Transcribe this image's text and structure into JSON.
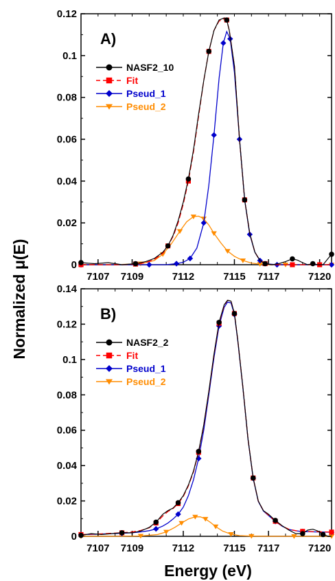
{
  "figure": {
    "ylabel": "Normalized μ(E)",
    "xlabel": "Energy (eV)"
  },
  "colors": {
    "data": "#000000",
    "fit": "#ff0000",
    "pseud_1": "#0000cc",
    "pseud_2": "#ff8c00"
  },
  "chart_data": [
    {
      "type": "line",
      "panel_label": "A)",
      "xlim": [
        7106,
        7120.7
      ],
      "ylim": [
        0,
        0.12
      ],
      "x_ticks": [
        7107,
        7109,
        7112,
        7115,
        7117,
        7120
      ],
      "y_ticks": [
        0,
        0.02,
        0.04,
        0.06,
        0.08,
        0.1,
        0.12
      ],
      "y_tick_labels": [
        "0",
        "0.02",
        "0.04",
        "0.06",
        "0.08",
        "0.1",
        "0.12"
      ],
      "legend": [
        "NASF2_10",
        "Fit",
        "Pseud_1",
        "Pseud_2"
      ],
      "series": [
        {
          "name": "NASF2_10",
          "marker": "circle",
          "x": [
            7106.0,
            7106.8,
            7107.6,
            7108.4,
            7109.2,
            7109.8,
            7110.3,
            7110.8,
            7111.1,
            7111.4,
            7111.7,
            7112.0,
            7112.3,
            7112.6,
            7112.9,
            7113.2,
            7113.5,
            7113.8,
            7114.1,
            7114.4,
            7114.55,
            7114.7,
            7115.0,
            7115.3,
            7115.6,
            7115.9,
            7116.2,
            7116.5,
            7116.8,
            7117.2,
            7117.6,
            7118.0,
            7118.4,
            7118.7,
            7119.0,
            7119.3,
            7119.6,
            7119.9,
            7120.2,
            7120.5,
            7120.7
          ],
          "y": [
            0.001,
            0.0005,
            0.001,
            0.0,
            0.0005,
            0.0015,
            0.003,
            0.006,
            0.009,
            0.014,
            0.021,
            0.03,
            0.041,
            0.055,
            0.072,
            0.088,
            0.102,
            0.112,
            0.117,
            0.118,
            0.117,
            0.112,
            0.095,
            0.06,
            0.031,
            0.015,
            0.006,
            0.002,
            0.0005,
            0.0,
            0.0005,
            0.0015,
            0.0028,
            0.0022,
            0.001,
            0.0,
            0.0005,
            0.0,
            0.0,
            0.003,
            0.005
          ]
        },
        {
          "name": "Fit",
          "marker": "square",
          "x": [
            7106.0,
            7106.8,
            7107.6,
            7108.4,
            7109.2,
            7109.8,
            7110.3,
            7110.8,
            7111.1,
            7111.4,
            7111.7,
            7112.0,
            7112.3,
            7112.6,
            7112.9,
            7113.2,
            7113.5,
            7113.8,
            7114.1,
            7114.4,
            7114.55,
            7114.7,
            7115.0,
            7115.3,
            7115.6,
            7115.9,
            7116.2,
            7116.5,
            7116.8,
            7117.2,
            7117.6,
            7118.0,
            7118.4,
            7118.8,
            7119.2,
            7119.6,
            7120.0,
            7120.4,
            7120.7
          ],
          "y": [
            0.0,
            0.0,
            0.0,
            0.0,
            0.0003,
            0.001,
            0.0025,
            0.0055,
            0.009,
            0.0135,
            0.02,
            0.029,
            0.04,
            0.054,
            0.071,
            0.088,
            0.102,
            0.112,
            0.1165,
            0.1175,
            0.117,
            0.112,
            0.095,
            0.06,
            0.031,
            0.015,
            0.006,
            0.002,
            0.0005,
            0.0,
            0.0,
            0.0,
            0.0,
            0.0,
            0.0,
            0.0,
            0.0,
            0.0,
            0.0
          ]
        },
        {
          "name": "Pseud_1",
          "marker": "diamond",
          "x": [
            7106.0,
            7108.0,
            7110.0,
            7111.0,
            7111.6,
            7112.0,
            7112.4,
            7112.8,
            7113.2,
            7113.5,
            7113.8,
            7114.1,
            7114.35,
            7114.55,
            7114.75,
            7115.0,
            7115.3,
            7115.6,
            7115.9,
            7116.2,
            7116.5,
            7116.8,
            7117.5,
            7118.5,
            7120.7
          ],
          "y": [
            0.0,
            0.0,
            0.0,
            0.0,
            0.0005,
            0.0012,
            0.003,
            0.008,
            0.02,
            0.038,
            0.062,
            0.089,
            0.106,
            0.1115,
            0.108,
            0.092,
            0.06,
            0.031,
            0.0145,
            0.006,
            0.002,
            0.0005,
            0.0,
            0.0,
            0.0
          ]
        },
        {
          "name": "Pseud_2",
          "marker": "triangle",
          "x": [
            7106.0,
            7108.0,
            7109.5,
            7110.3,
            7110.8,
            7111.3,
            7111.8,
            7112.2,
            7112.6,
            7112.9,
            7113.2,
            7113.5,
            7113.8,
            7114.2,
            7114.6,
            7115.0,
            7115.5,
            7116.0,
            7116.5,
            7117.0,
            7118.0,
            7119.5,
            7120.7
          ],
          "y": [
            0.0,
            0.0,
            0.0005,
            0.002,
            0.005,
            0.01,
            0.016,
            0.0205,
            0.023,
            0.0232,
            0.022,
            0.019,
            0.015,
            0.0105,
            0.0065,
            0.004,
            0.002,
            0.0008,
            0.0003,
            0.0,
            0.0,
            0.0,
            0.0
          ]
        }
      ]
    },
    {
      "type": "line",
      "panel_label": "B)",
      "xlim": [
        7106,
        7120.7
      ],
      "ylim": [
        0,
        0.14
      ],
      "x_ticks": [
        7107,
        7109,
        7112,
        7115,
        7117,
        7120
      ],
      "y_ticks": [
        0,
        0.02,
        0.04,
        0.06,
        0.08,
        0.1,
        0.12,
        0.14
      ],
      "y_tick_labels": [
        "0",
        "0.02",
        "0.04",
        "0.06",
        "0.08",
        "0.1",
        "0.12",
        "0.14"
      ],
      "legend": [
        "NASF2_2",
        "Fit",
        "Pseud_1",
        "Pseud_2"
      ],
      "series": [
        {
          "name": "NASF2_2",
          "marker": "circle",
          "x": [
            7106.0,
            7106.6,
            7107.2,
            7107.8,
            7108.4,
            7109.0,
            7109.5,
            7110.0,
            7110.4,
            7110.8,
            7111.1,
            7111.4,
            7111.7,
            7112.0,
            7112.3,
            7112.6,
            7112.9,
            7113.2,
            7113.5,
            7113.8,
            7114.1,
            7114.4,
            7114.6,
            7114.8,
            7115.0,
            7115.2,
            7115.5,
            7115.8,
            7116.1,
            7116.4,
            7116.7,
            7117.0,
            7117.4,
            7117.8,
            7118.2,
            7118.6,
            7119.0,
            7119.3,
            7119.6,
            7119.9,
            7120.2,
            7120.5,
            7120.7
          ],
          "y": [
            0.0005,
            0.0015,
            0.001,
            0.0015,
            0.002,
            0.002,
            0.003,
            0.005,
            0.008,
            0.0125,
            0.0145,
            0.016,
            0.019,
            0.023,
            0.029,
            0.037,
            0.048,
            0.063,
            0.082,
            0.103,
            0.121,
            0.131,
            0.1335,
            0.133,
            0.126,
            0.111,
            0.084,
            0.055,
            0.033,
            0.02,
            0.0145,
            0.0125,
            0.009,
            0.006,
            0.0035,
            0.0015,
            0.0015,
            0.0035,
            0.004,
            0.003,
            0.001,
            0.0,
            0.0
          ]
        },
        {
          "name": "Fit",
          "marker": "square",
          "x": [
            7106.0,
            7106.6,
            7107.2,
            7107.8,
            7108.4,
            7109.0,
            7109.5,
            7110.0,
            7110.4,
            7110.8,
            7111.1,
            7111.4,
            7111.7,
            7112.0,
            7112.3,
            7112.6,
            7112.9,
            7113.2,
            7113.5,
            7113.8,
            7114.1,
            7114.4,
            7114.6,
            7114.8,
            7115.0,
            7115.2,
            7115.5,
            7115.8,
            7116.1,
            7116.4,
            7116.7,
            7117.0,
            7117.4,
            7117.8,
            7118.2,
            7118.6,
            7119.0,
            7119.4,
            7119.8,
            7120.2,
            7120.7
          ],
          "y": [
            0.001,
            0.0012,
            0.0014,
            0.0017,
            0.002,
            0.0025,
            0.0033,
            0.0048,
            0.0075,
            0.0115,
            0.014,
            0.0157,
            0.0185,
            0.0225,
            0.0285,
            0.0365,
            0.0475,
            0.0625,
            0.0815,
            0.1025,
            0.1205,
            0.1305,
            0.1335,
            0.133,
            0.126,
            0.111,
            0.084,
            0.055,
            0.033,
            0.02,
            0.0145,
            0.012,
            0.0085,
            0.0058,
            0.004,
            0.0032,
            0.0028,
            0.0027,
            0.0026,
            0.0025,
            0.0024
          ]
        },
        {
          "name": "Pseud_1",
          "marker": "diamond",
          "x": [
            7106.0,
            7106.6,
            7107.2,
            7107.8,
            7108.4,
            7109.0,
            7109.5,
            7110.0,
            7110.4,
            7110.8,
            7111.1,
            7111.4,
            7111.7,
            7112.0,
            7112.3,
            7112.6,
            7112.9,
            7113.2,
            7113.5,
            7113.8,
            7114.1,
            7114.4,
            7114.6,
            7114.8,
            7115.0,
            7115.2,
            7115.5,
            7115.8,
            7116.1,
            7116.4,
            7116.7,
            7117.0,
            7117.4,
            7117.8,
            7118.2,
            7118.6,
            7119.0,
            7119.4,
            7119.8,
            7120.2,
            7120.7
          ],
          "y": [
            0.001,
            0.0011,
            0.0013,
            0.0015,
            0.0017,
            0.002,
            0.0025,
            0.0032,
            0.0042,
            0.0058,
            0.0075,
            0.0098,
            0.0125,
            0.0165,
            0.023,
            0.032,
            0.044,
            0.06,
            0.08,
            0.101,
            0.119,
            0.1295,
            0.1325,
            0.132,
            0.1255,
            0.1105,
            0.0838,
            0.0548,
            0.0328,
            0.0198,
            0.0143,
            0.0118,
            0.0084,
            0.0057,
            0.0039,
            0.0031,
            0.0027,
            0.0026,
            0.0025,
            0.0024,
            0.0023
          ]
        },
        {
          "name": "Pseud_2",
          "marker": "triangle",
          "x": [
            7106.0,
            7108.0,
            7109.5,
            7110.5,
            7111.0,
            7111.5,
            7111.9,
            7112.3,
            7112.7,
            7113.0,
            7113.3,
            7113.6,
            7113.9,
            7114.3,
            7114.8,
            7115.3,
            7116.0,
            7117.0,
            7118.5,
            7120.0,
            7120.7
          ],
          "y": [
            0.0,
            0.0,
            0.0002,
            0.001,
            0.0025,
            0.005,
            0.0075,
            0.0098,
            0.011,
            0.011,
            0.0098,
            0.0078,
            0.0055,
            0.003,
            0.0012,
            0.0004,
            0.0001,
            0.0,
            0.0,
            0.0,
            0.0
          ]
        }
      ]
    }
  ]
}
